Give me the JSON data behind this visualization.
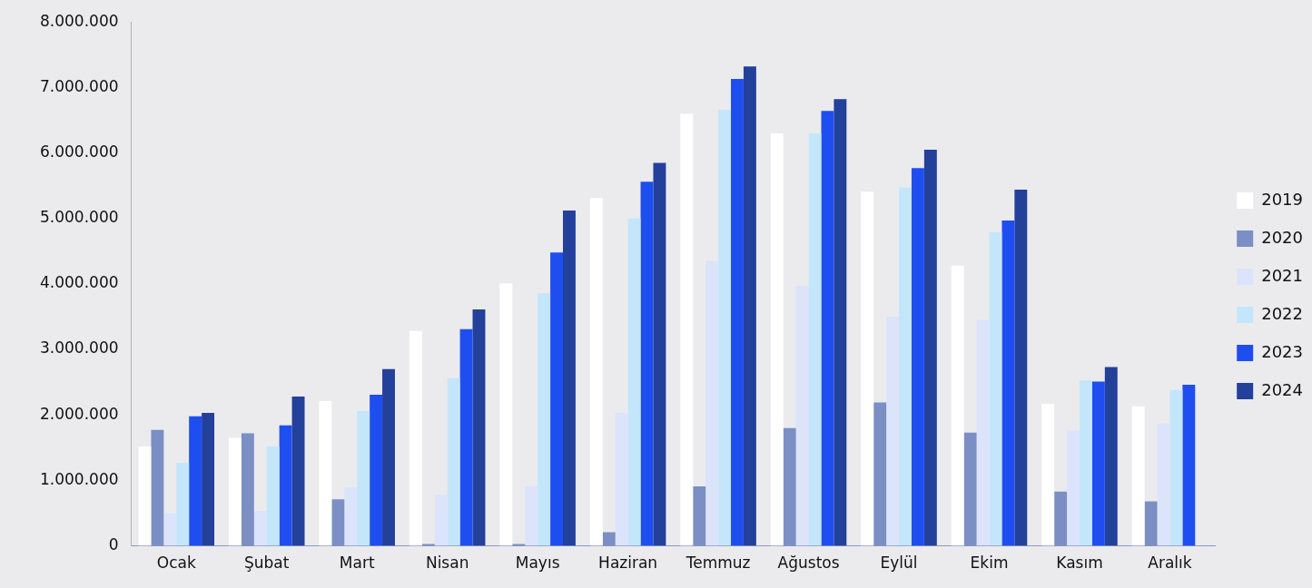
{
  "chart_data": {
    "type": "bar",
    "categories": [
      "Ocak",
      "Şubat",
      "Mart",
      "Nisan",
      "Mayıs",
      "Haziran",
      "Temmuz",
      "Ağustos",
      "Eylül",
      "Ekim",
      "Kasım",
      "Aralık"
    ],
    "series": [
      {
        "name": "2019",
        "color": "#ffffff",
        "values": [
          1520000,
          1650000,
          2210000,
          3280000,
          4010000,
          5310000,
          6600000,
          6300000,
          5410000,
          4280000,
          2170000,
          2130000
        ]
      },
      {
        "name": "2020",
        "color": "#7b8fc4",
        "values": [
          1770000,
          1720000,
          710000,
          30000,
          30000,
          210000,
          910000,
          1800000,
          2190000,
          1730000,
          830000,
          680000
        ]
      },
      {
        "name": "2021",
        "color": "#dce4fb",
        "values": [
          500000,
          530000,
          890000,
          780000,
          910000,
          2030000,
          4350000,
          3970000,
          3500000,
          3450000,
          1760000,
          1870000
        ]
      },
      {
        "name": "2022",
        "color": "#c4e6fa",
        "values": [
          1270000,
          1520000,
          2060000,
          2560000,
          3860000,
          5000000,
          6660000,
          6300000,
          5470000,
          4790000,
          2530000,
          2380000
        ]
      },
      {
        "name": "2023",
        "color": "#1f4ef0",
        "values": [
          1980000,
          1840000,
          2310000,
          3310000,
          4480000,
          5560000,
          7130000,
          6640000,
          5770000,
          4970000,
          2510000,
          2460000
        ]
      },
      {
        "name": "2024",
        "color": "#23409a",
        "values": [
          2030000,
          2280000,
          2700000,
          3610000,
          5120000,
          5850000,
          7320000,
          6820000,
          6050000,
          5440000,
          2730000,
          null
        ]
      }
    ],
    "ylim": [
      0,
      8000000
    ],
    "yticks": [
      {
        "value": 0,
        "label": "0"
      },
      {
        "value": 1000000,
        "label": "1.000.000"
      },
      {
        "value": 2000000,
        "label": "2.000.000"
      },
      {
        "value": 3000000,
        "label": "3.000.000"
      },
      {
        "value": 4000000,
        "label": "4.000.000"
      },
      {
        "value": 5000000,
        "label": "5.000.000"
      },
      {
        "value": 6000000,
        "label": "6.000.000"
      },
      {
        "value": 7000000,
        "label": "7.000.000"
      },
      {
        "value": 8000000,
        "label": "8.000.000"
      }
    ],
    "grid": false,
    "legend": "right"
  }
}
